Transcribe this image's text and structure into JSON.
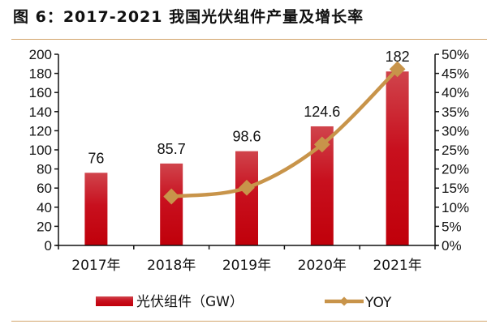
{
  "header": {
    "title": "图 6：2017-2021 我国光伏组件产量及增长率"
  },
  "chart_data": {
    "type": "bar",
    "title": "图 6：2017-2021 我国光伏组件产量及增长率",
    "categories": [
      "2017年",
      "2018年",
      "2019年",
      "2020年",
      "2021年"
    ],
    "series": [
      {
        "name": "光伏组件（GW）",
        "type": "bar",
        "axis": "left",
        "values": [
          76,
          85.7,
          98.6,
          124.6,
          182
        ],
        "labels": [
          "76",
          "85.7",
          "98.6",
          "124.6",
          "182"
        ],
        "color": "#c8000f"
      },
      {
        "name": "YOY",
        "type": "line",
        "axis": "right",
        "values": [
          null,
          12.8,
          15.1,
          26.4,
          46.1
        ],
        "color": "#c8944a"
      }
    ],
    "y_left": {
      "range": [
        0,
        200
      ],
      "ticks": [
        "0",
        "20",
        "40",
        "60",
        "80",
        "100",
        "120",
        "140",
        "160",
        "180",
        "200"
      ]
    },
    "y_right": {
      "range": [
        0,
        50
      ],
      "ticks": [
        "0%",
        "5%",
        "10%",
        "15%",
        "20%",
        "25%",
        "30%",
        "35%",
        "40%",
        "45%",
        "50%"
      ]
    },
    "legend": {
      "position": "bottom",
      "items": [
        "光伏组件（GW）",
        "YOY"
      ]
    },
    "grid": false
  }
}
